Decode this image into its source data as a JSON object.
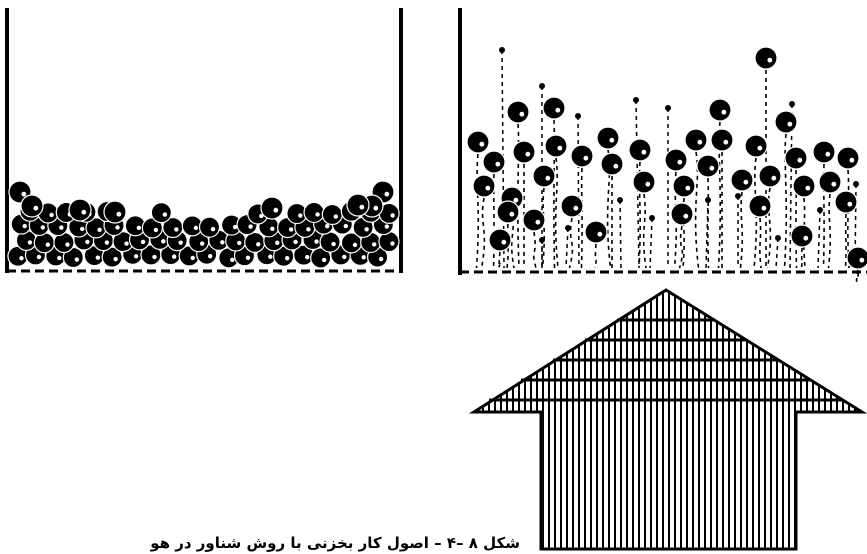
{
  "figure": {
    "caption": "شکل ۸ –۴ – اصول کار بخزنی با روش شناور در هوا",
    "panels": [
      {
        "id": "settled-bed",
        "state": "packed particles resting on porous base"
      },
      {
        "id": "fluidized-bed",
        "state": "particles suspended by rising air"
      }
    ],
    "arrow": {
      "meaning": "air flow upward",
      "fill": "vertical-hatch"
    }
  },
  "colors": {
    "ink": "#000000",
    "background": "#ffffff"
  }
}
